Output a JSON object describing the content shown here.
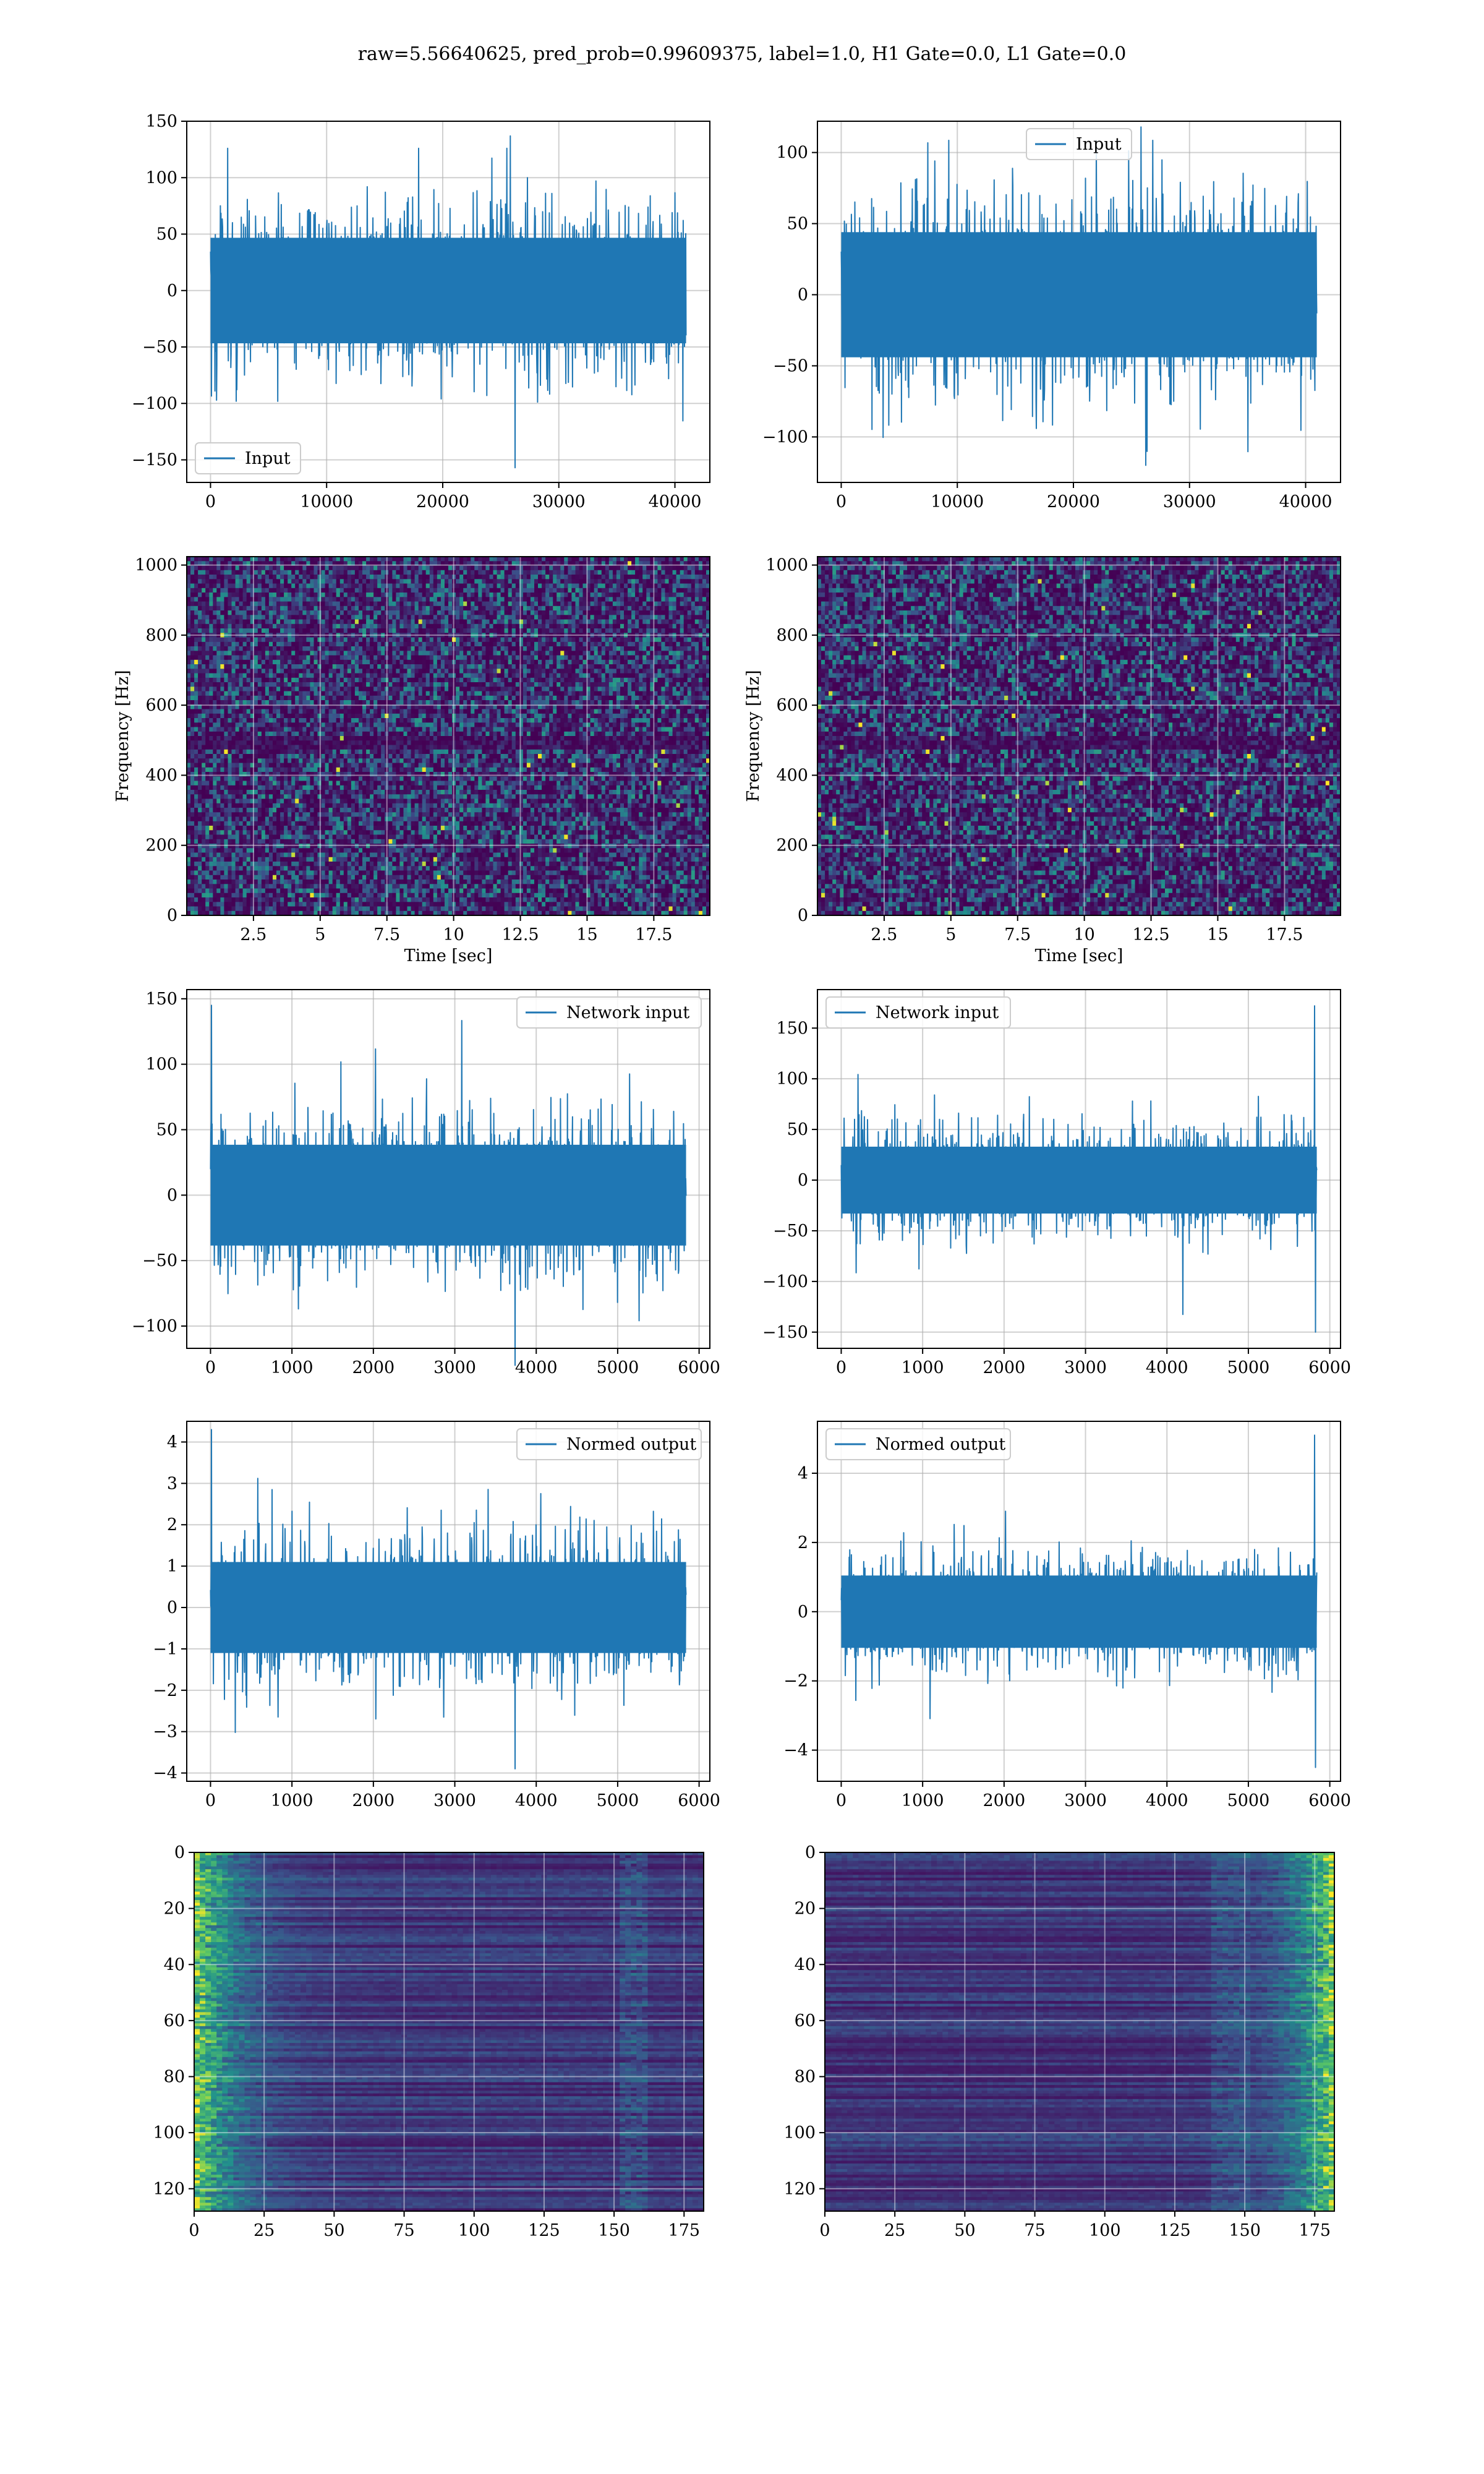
{
  "figure": {
    "title": "raw=5.56640625, pred_prob=0.99609375, label=1.0, H1 Gate=0.0, L1 Gate=0.0"
  },
  "chart_data": [
    {
      "id": "input-h1",
      "type": "line",
      "legend": [
        "Input"
      ],
      "legend_loc": "lower left",
      "series": [
        {
          "name": "Input",
          "x_range": [
            0,
            40960
          ],
          "amplitude": 85,
          "peak_max": 137,
          "peak_min": -157
        }
      ],
      "xlim": [
        -2048,
        43008
      ],
      "ylim": [
        -170,
        150
      ],
      "xticks": [
        0,
        10000,
        20000,
        30000,
        40000
      ],
      "yticks": [
        -150,
        -100,
        -50,
        0,
        50,
        100,
        150
      ],
      "xlabel": "",
      "ylabel": "",
      "grid": true
    },
    {
      "id": "input-l1",
      "type": "line",
      "legend": [
        "Input"
      ],
      "legend_loc": "upper center",
      "series": [
        {
          "name": "Input",
          "x_range": [
            0,
            40960
          ],
          "amplitude": 80,
          "peak_max": 118,
          "peak_min": -120
        }
      ],
      "xlim": [
        -2048,
        43008
      ],
      "ylim": [
        -132,
        122
      ],
      "xticks": [
        0,
        10000,
        20000,
        30000,
        40000
      ],
      "yticks": [
        -100,
        -50,
        0,
        50,
        100
      ],
      "xlabel": "",
      "ylabel": "",
      "grid": true
    },
    {
      "id": "spectrogram-h1",
      "type": "heatmap",
      "xlim": [
        0,
        19.6
      ],
      "ylim": [
        0,
        1024
      ],
      "xticks": [
        2.5,
        5.0,
        7.5,
        10.0,
        12.5,
        15.0,
        17.5
      ],
      "yticks": [
        0,
        200,
        400,
        600,
        800,
        1000
      ],
      "xlabel": "Time [sec]",
      "ylabel": "Frequency [Hz]",
      "grid": true,
      "colormap": "viridis"
    },
    {
      "id": "spectrogram-l1",
      "type": "heatmap",
      "xlim": [
        0,
        19.6
      ],
      "ylim": [
        0,
        1024
      ],
      "xticks": [
        2.5,
        5.0,
        7.5,
        10.0,
        12.5,
        15.0,
        17.5
      ],
      "yticks": [
        0,
        200,
        400,
        600,
        800,
        1000
      ],
      "xlabel": "Time [sec]",
      "ylabel": "Frequency [Hz]",
      "grid": true,
      "colormap": "viridis"
    },
    {
      "id": "network-input-h1",
      "type": "line",
      "legend": [
        "Network input"
      ],
      "legend_loc": "upper right",
      "series": [
        {
          "name": "Network input",
          "x_range": [
            0,
            5840
          ],
          "amplitude": 70,
          "peak_max": 145,
          "peak_min": -130
        }
      ],
      "xlim": [
        -292,
        6132
      ],
      "ylim": [
        -117,
        157
      ],
      "xticks": [
        0,
        1000,
        2000,
        3000,
        4000,
        5000,
        6000
      ],
      "yticks": [
        -100,
        -50,
        0,
        50,
        100,
        150
      ],
      "xlabel": "",
      "ylabel": "",
      "grid": true
    },
    {
      "id": "network-input-l1",
      "type": "line",
      "legend": [
        "Network input"
      ],
      "legend_loc": "upper left",
      "series": [
        {
          "name": "Network input",
          "x_range": [
            0,
            5840
          ],
          "amplitude": 60,
          "peak_max": 172,
          "peak_min": -150
        }
      ],
      "xlim": [
        -292,
        6132
      ],
      "ylim": [
        -166,
        188
      ],
      "xticks": [
        0,
        1000,
        2000,
        3000,
        4000,
        5000,
        6000
      ],
      "yticks": [
        -150,
        -100,
        -50,
        0,
        50,
        100,
        150
      ],
      "xlabel": "",
      "ylabel": "",
      "grid": true
    },
    {
      "id": "normed-output-h1",
      "type": "line",
      "legend": [
        "Normed output"
      ],
      "legend_loc": "upper right",
      "series": [
        {
          "name": "Normed output",
          "x_range": [
            0,
            5840
          ],
          "amplitude": 2.0,
          "peak_max": 4.3,
          "peak_min": -3.9
        }
      ],
      "xlim": [
        -292,
        6132
      ],
      "ylim": [
        -4.2,
        4.5
      ],
      "xticks": [
        0,
        1000,
        2000,
        3000,
        4000,
        5000,
        6000
      ],
      "yticks": [
        -4,
        -3,
        -2,
        -1,
        0,
        1,
        2,
        3,
        4
      ],
      "xlabel": "",
      "ylabel": "",
      "grid": true
    },
    {
      "id": "normed-output-l1",
      "type": "line",
      "legend": [
        "Normed output"
      ],
      "legend_loc": "upper left",
      "series": [
        {
          "name": "Normed output",
          "x_range": [
            0,
            5840
          ],
          "amplitude": 1.9,
          "peak_max": 5.1,
          "peak_min": -4.5
        }
      ],
      "xlim": [
        -292,
        6132
      ],
      "ylim": [
        -4.9,
        5.5
      ],
      "xticks": [
        0,
        1000,
        2000,
        3000,
        4000,
        5000,
        6000
      ],
      "yticks": [
        -4,
        -2,
        0,
        2,
        4
      ],
      "xlabel": "",
      "ylabel": "",
      "grid": true
    },
    {
      "id": "feature-map-h1",
      "type": "heatmap",
      "xlim": [
        0,
        182
      ],
      "ylim": [
        128,
        0
      ],
      "xticks": [
        0,
        25,
        50,
        75,
        100,
        125,
        150,
        175
      ],
      "yticks": [
        0,
        20,
        40,
        60,
        80,
        100,
        120
      ],
      "xlabel": "",
      "ylabel": "",
      "grid": true,
      "colormap": "viridis",
      "bright_region": "left"
    },
    {
      "id": "feature-map-l1",
      "type": "heatmap",
      "xlim": [
        0,
        182
      ],
      "ylim": [
        128,
        0
      ],
      "xticks": [
        0,
        25,
        50,
        75,
        100,
        125,
        150,
        175
      ],
      "yticks": [
        0,
        20,
        40,
        60,
        80,
        100,
        120
      ],
      "xlabel": "",
      "ylabel": "",
      "grid": true,
      "colormap": "viridis",
      "bright_region": "right"
    }
  ]
}
